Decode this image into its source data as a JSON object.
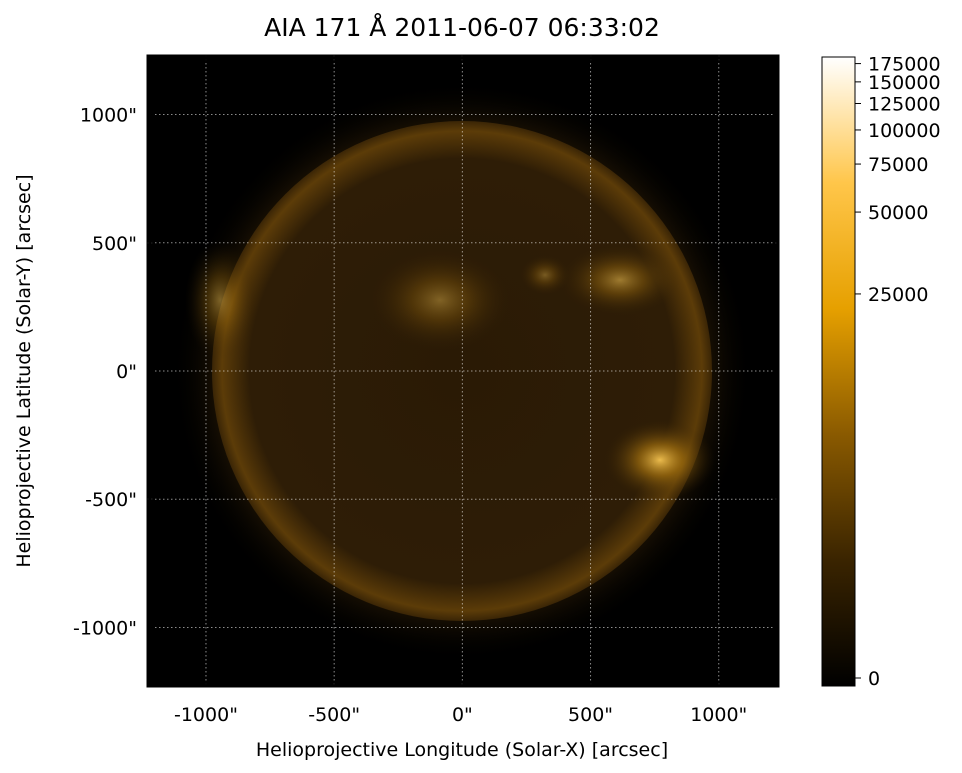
{
  "chart_data": {
    "type": "image",
    "title": "AIA 171 Å 2011-06-07 06:33:02",
    "xlabel": "Helioprojective Longitude (Solar-X) [arcsec]",
    "ylabel": "Helioprojective Latitude (Solar-Y) [arcsec]",
    "xlim": [
      -1230,
      1235
    ],
    "ylim": [
      -1232,
      1232
    ],
    "xticks": [
      {
        "value": -1000,
        "label": "-1000\""
      },
      {
        "value": -500,
        "label": "-500\""
      },
      {
        "value": 0,
        "label": "0\""
      },
      {
        "value": 500,
        "label": "500\""
      },
      {
        "value": 1000,
        "label": "1000\""
      }
    ],
    "yticks": [
      {
        "value": -1000,
        "label": "-1000\""
      },
      {
        "value": -500,
        "label": "-500\""
      },
      {
        "value": 0,
        "label": "0\""
      },
      {
        "value": 500,
        "label": "500\""
      },
      {
        "value": 1000,
        "label": "1000\""
      }
    ],
    "grid": true,
    "colorbar": {
      "scale": "asinh",
      "lim": [
        -125,
        185000
      ],
      "ticks": [
        0,
        25000,
        50000,
        75000,
        100000,
        125000,
        150000,
        175000
      ],
      "colors": [
        "#000000",
        "#3a2400",
        "#8a5a00",
        "#e6a000",
        "#ffc64a",
        "#ffffff"
      ]
    }
  }
}
